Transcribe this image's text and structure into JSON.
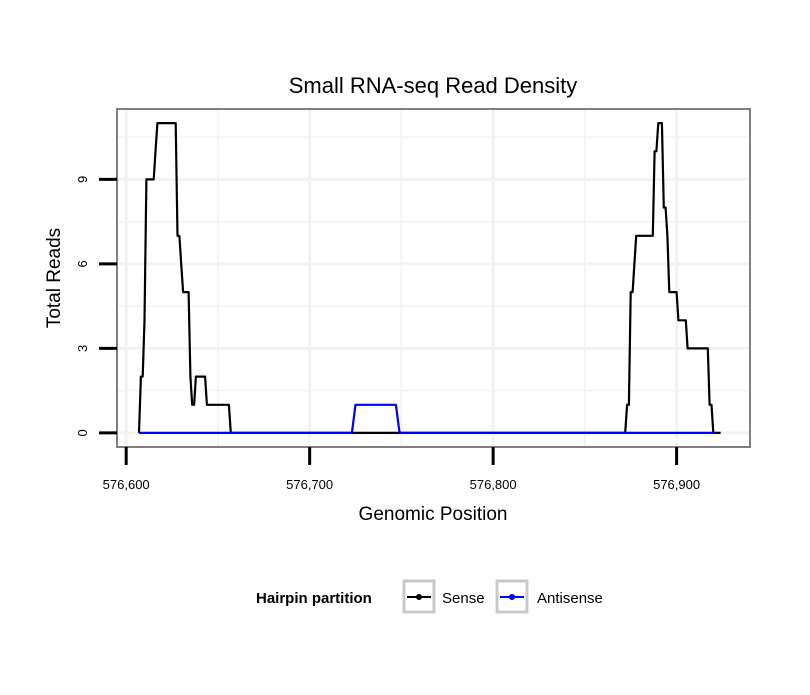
{
  "chart_data": {
    "type": "line",
    "title": "Small RNA-seq Read Density",
    "xlabel": "Genomic Position",
    "ylabel": "Total Reads",
    "xlim": [
      576595,
      576940
    ],
    "ylim": [
      -0.5,
      11.5
    ],
    "xticks": [
      576600,
      576700,
      576800,
      576900
    ],
    "xtick_labels": [
      "576,600",
      "576,700",
      "576,800",
      "576,900"
    ],
    "yticks": [
      0,
      3,
      6,
      9
    ],
    "ytick_labels": [
      "0",
      "3",
      "6",
      "9"
    ],
    "grid": true,
    "legend": {
      "title": "Hairpin partition",
      "position": "bottom",
      "entries": [
        {
          "name": "Sense",
          "color": "#000000"
        },
        {
          "name": "Antisense",
          "color": "#0000ff"
        }
      ]
    },
    "series": [
      {
        "name": "Sense",
        "color": "#000000",
        "x": [
          576607,
          576608,
          576609,
          576610,
          576611,
          576612,
          576613,
          576614,
          576615,
          576616,
          576617,
          576618,
          576619,
          576620,
          576621,
          576622,
          576623,
          576624,
          576625,
          576626,
          576627,
          576628,
          576629,
          576630,
          576631,
          576632,
          576633,
          576634,
          576635,
          576636,
          576637,
          576638,
          576639,
          576640,
          576641,
          576642,
          576643,
          576644,
          576645,
          576646,
          576647,
          576648,
          576649,
          576650,
          576651,
          576652,
          576653,
          576654,
          576655,
          576656,
          576657,
          576690,
          576724,
          576725,
          576735,
          576747,
          576748,
          576800,
          576850,
          576872,
          576873,
          576874,
          576875,
          576876,
          576877,
          576878,
          576879,
          576880,
          576881,
          576882,
          576883,
          576884,
          576885,
          576886,
          576887,
          576888,
          576889,
          576890,
          576891,
          576892,
          576893,
          576894,
          576895,
          576896,
          576897,
          576898,
          576899,
          576900,
          576901,
          576902,
          576903,
          576904,
          576905,
          576906,
          576907,
          576908,
          576909,
          576910,
          576911,
          576912,
          576913,
          576914,
          576915,
          576916,
          576917,
          576918,
          576919,
          576920,
          576921,
          576922,
          576923,
          576924
        ],
        "values": [
          0,
          2,
          2,
          4,
          9,
          9,
          9,
          9,
          9,
          10,
          11,
          11,
          11,
          11,
          11,
          11,
          11,
          11,
          11,
          11,
          11,
          7,
          7,
          6,
          5,
          5,
          5,
          5,
          2,
          1,
          1,
          2,
          2,
          2,
          2,
          2,
          2,
          1,
          1,
          1,
          1,
          1,
          1,
          1,
          1,
          1,
          1,
          1,
          1,
          1,
          0,
          0,
          0,
          0,
          0,
          0,
          0,
          0,
          0,
          0,
          1,
          1,
          5,
          5,
          6,
          7,
          7,
          7,
          7,
          7,
          7,
          7,
          7,
          7,
          7,
          10,
          10,
          11,
          11,
          11,
          8,
          8,
          7,
          5,
          5,
          5,
          5,
          5,
          4,
          4,
          4,
          4,
          4,
          3,
          3,
          3,
          3,
          3,
          3,
          3,
          3,
          3,
          3,
          3,
          3,
          1,
          1,
          0,
          0,
          0,
          0,
          0
        ]
      },
      {
        "name": "Antisense",
        "color": "#0000ff",
        "x": [
          576607,
          576650,
          576700,
          576723,
          576724,
          576725,
          576735,
          576747,
          576748,
          576749,
          576800,
          576872,
          576900,
          576921
        ],
        "values": [
          0,
          0,
          0,
          0,
          0.5,
          1,
          1,
          1,
          0.5,
          0,
          0,
          0,
          0,
          0
        ]
      }
    ]
  }
}
